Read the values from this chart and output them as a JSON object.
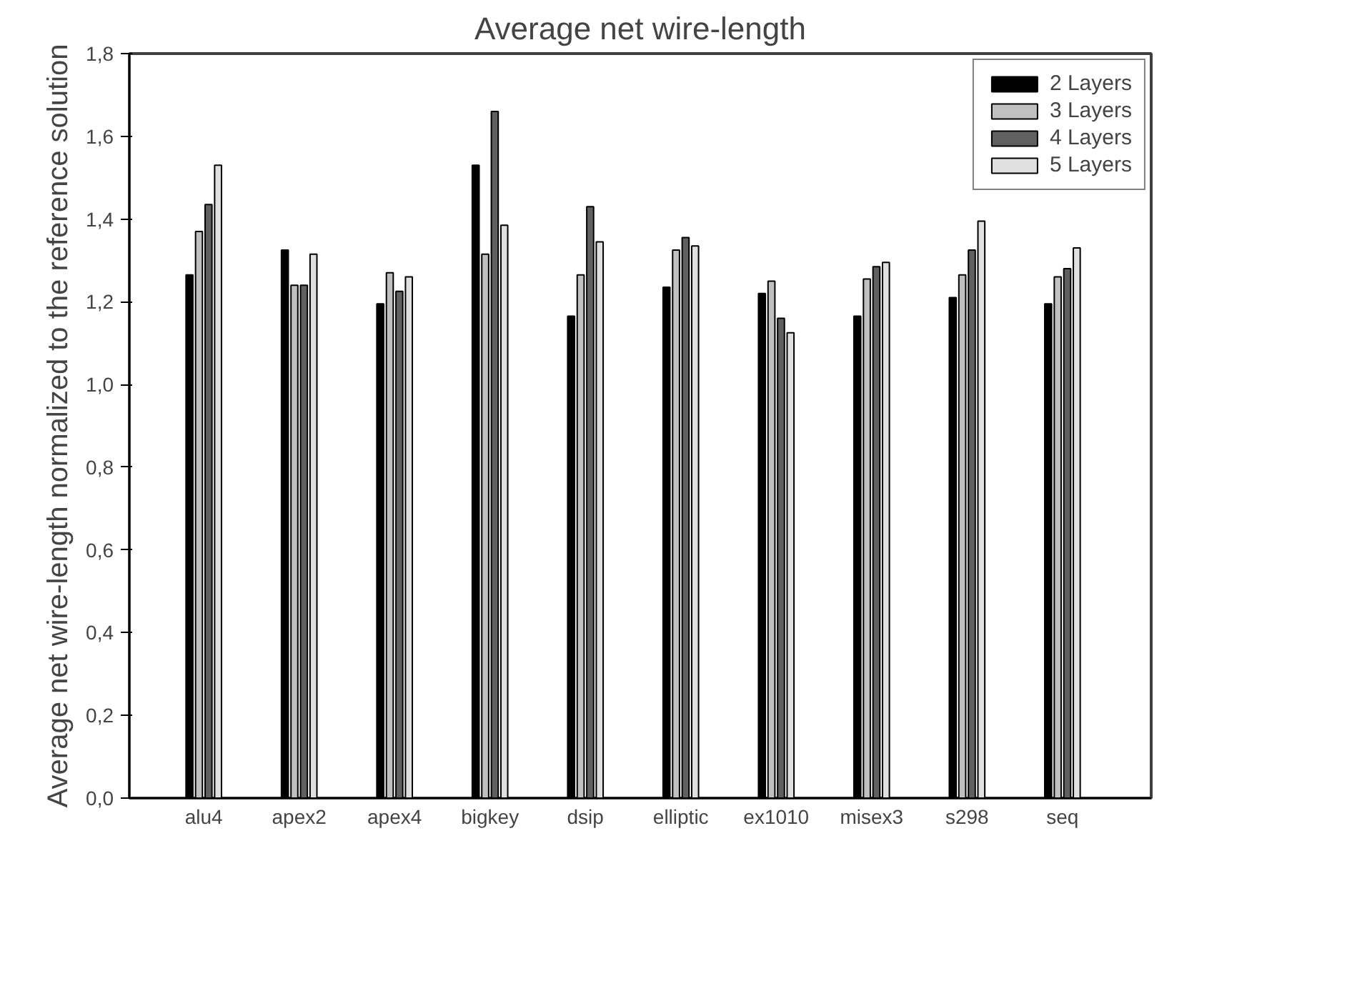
{
  "chart_data": {
    "type": "bar",
    "title": "Average net wire-length",
    "ylabel": "Average net wire-length normalized to the reference solution",
    "categories": [
      "alu4",
      "apex2",
      "apex4",
      "bigkey",
      "dsip",
      "elliptic",
      "ex1010",
      "misex3",
      "s298",
      "seq"
    ],
    "series": [
      {
        "name": "2 Layers",
        "color": "#000000",
        "values": [
          1.265,
          1.325,
          1.195,
          1.53,
          1.165,
          1.235,
          1.22,
          1.165,
          1.21,
          1.195
        ]
      },
      {
        "name": "3 Layers",
        "color": "#c0c0c0",
        "values": [
          1.37,
          1.24,
          1.27,
          1.315,
          1.265,
          1.325,
          1.25,
          1.255,
          1.265,
          1.26
        ]
      },
      {
        "name": "4 Layers",
        "color": "#606060",
        "values": [
          1.435,
          1.24,
          1.225,
          1.66,
          1.43,
          1.355,
          1.16,
          1.285,
          1.325,
          1.28
        ]
      },
      {
        "name": "5 Layers",
        "color": "#e0e0e0",
        "values": [
          1.53,
          1.315,
          1.26,
          1.385,
          1.345,
          1.335,
          1.125,
          1.295,
          1.395,
          1.33
        ]
      }
    ],
    "ylim": [
      0,
      1.8
    ],
    "yticks": [
      {
        "value": 0,
        "label": "0,0"
      },
      {
        "value": 0.2,
        "label": "0,2"
      },
      {
        "value": 0.4,
        "label": "0,4"
      },
      {
        "value": 0.6,
        "label": "0,6"
      },
      {
        "value": 0.8,
        "label": "0,8"
      },
      {
        "value": 1.0,
        "label": "1,0"
      },
      {
        "value": 1.2,
        "label": "1,2"
      },
      {
        "value": 1.4,
        "label": "1,4"
      },
      {
        "value": 1.6,
        "label": "1,6"
      },
      {
        "value": 1.8,
        "label": "1,8"
      }
    ],
    "legend": "top right",
    "grid": false
  }
}
